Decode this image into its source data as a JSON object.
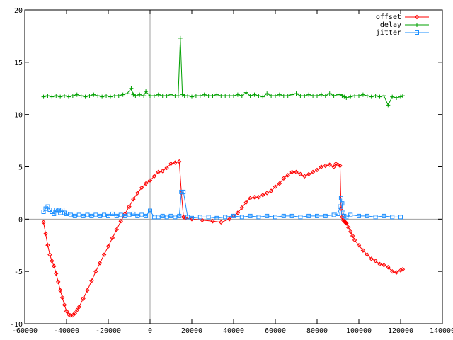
{
  "chart_data": {
    "type": "line",
    "title": "",
    "xlabel": "",
    "ylabel": "",
    "xlim": [
      -60000,
      140000
    ],
    "ylim": [
      -10,
      20
    ],
    "grid": false,
    "legend_position": "top-right",
    "x_ticks": [
      -60000,
      -40000,
      -20000,
      0,
      20000,
      40000,
      60000,
      80000,
      100000,
      120000,
      140000
    ],
    "x_tick_labels": [
      "-60000",
      "-40000",
      "-20000",
      "0",
      "20000",
      "40000",
      "60000",
      "80000",
      "100000",
      "120000",
      "140000"
    ],
    "y_ticks": [
      -10,
      -5,
      0,
      5,
      10,
      15,
      20
    ],
    "y_tick_labels": [
      "-10",
      "-5",
      "0",
      "5",
      "10",
      "15",
      "20"
    ],
    "zero_axes": true,
    "series": [
      {
        "name": "offset",
        "color": "#ff0000",
        "marker": "diamond",
        "x": [
          -51000,
          -50000,
          -49000,
          -48000,
          -47000,
          -46000,
          -45000,
          -44000,
          -43000,
          -42000,
          -41000,
          -40000,
          -39000,
          -38000,
          -37000,
          -36000,
          -35000,
          -34000,
          -32000,
          -30000,
          -28000,
          -26000,
          -24000,
          -22000,
          -20000,
          -18000,
          -16000,
          -14000,
          -12000,
          -10000,
          -8000,
          -6000,
          -4000,
          -2000,
          0,
          2000,
          4000,
          6000,
          8000,
          10000,
          12000,
          14000,
          15000,
          16000,
          17000,
          20000,
          25000,
          30000,
          34000,
          38000,
          40000,
          42000,
          44000,
          46000,
          48000,
          50000,
          52000,
          54000,
          56000,
          58000,
          60000,
          62000,
          64000,
          66000,
          68000,
          70000,
          72000,
          74000,
          76000,
          78000,
          80000,
          82000,
          84000,
          86000,
          88000,
          89000,
          90000,
          91000,
          91500,
          92000,
          92500,
          93000,
          93500,
          94000,
          95000,
          96000,
          97000,
          98000,
          100000,
          102000,
          104000,
          106000,
          108000,
          110000,
          112000,
          114000,
          116000,
          118000,
          120000,
          121000
        ],
        "y": [
          -0.3,
          -1.4,
          -2.5,
          -3.4,
          -4.0,
          -4.5,
          -5.2,
          -6.0,
          -6.8,
          -7.5,
          -8.2,
          -8.8,
          -9.1,
          -9.2,
          -9.2,
          -9.0,
          -8.7,
          -8.4,
          -7.6,
          -6.8,
          -5.9,
          -5.0,
          -4.2,
          -3.4,
          -2.6,
          -1.8,
          -1.0,
          -0.2,
          0.5,
          1.2,
          1.9,
          2.5,
          3.0,
          3.4,
          3.7,
          4.1,
          4.5,
          4.6,
          4.9,
          5.3,
          5.4,
          5.5,
          2.5,
          0.2,
          0.1,
          0.0,
          -0.1,
          -0.2,
          -0.3,
          0.0,
          0.3,
          0.6,
          1.1,
          1.6,
          2.0,
          2.1,
          2.1,
          2.3,
          2.5,
          2.7,
          3.1,
          3.4,
          3.9,
          4.2,
          4.5,
          4.5,
          4.3,
          4.1,
          4.3,
          4.5,
          4.7,
          5.0,
          5.1,
          5.2,
          5.0,
          5.3,
          5.2,
          5.1,
          1.0,
          0.2,
          -0.1,
          -0.2,
          -0.3,
          -0.4,
          -0.8,
          -1.2,
          -1.6,
          -2.0,
          -2.5,
          -3.0,
          -3.4,
          -3.8,
          -4.0,
          -4.3,
          -4.4,
          -4.6,
          -5.0,
          -5.1,
          -4.9,
          -4.8
        ],
        "x_dense": [
          93000,
          94000
        ],
        "x_dense_note": ""
      },
      {
        "name": "delay",
        "color": "#00a000",
        "marker": "plus",
        "x": [
          -51000,
          -49000,
          -47000,
          -45000,
          -43000,
          -41000,
          -39000,
          -37000,
          -35000,
          -33000,
          -31000,
          -29000,
          -27000,
          -25000,
          -23000,
          -21000,
          -19000,
          -17000,
          -15000,
          -13000,
          -11000,
          -9000,
          -8000,
          -7000,
          -5000,
          -3000,
          -2000,
          0,
          2000,
          4000,
          6000,
          8000,
          10000,
          12000,
          13500,
          14500,
          15500,
          16500,
          18000,
          20000,
          22000,
          24000,
          26000,
          28000,
          30000,
          32000,
          34000,
          36000,
          38000,
          40000,
          42000,
          44000,
          46000,
          48000,
          50000,
          52000,
          54000,
          56000,
          58000,
          60000,
          62000,
          64000,
          66000,
          68000,
          70000,
          72000,
          74000,
          76000,
          78000,
          80000,
          82000,
          84000,
          86000,
          88000,
          90000,
          91000,
          92000,
          93000,
          94000,
          96000,
          98000,
          100000,
          102000,
          104000,
          106000,
          108000,
          110000,
          112000,
          114000,
          116000,
          118000,
          120000,
          121000
        ],
        "y": [
          11.7,
          11.8,
          11.7,
          11.8,
          11.7,
          11.8,
          11.7,
          11.8,
          11.9,
          11.8,
          11.7,
          11.8,
          11.9,
          11.8,
          11.7,
          11.8,
          11.7,
          11.8,
          11.8,
          11.9,
          12.0,
          12.5,
          11.9,
          11.8,
          11.9,
          11.8,
          12.2,
          11.8,
          11.8,
          11.9,
          11.8,
          11.8,
          11.9,
          11.8,
          11.8,
          17.3,
          11.9,
          11.8,
          11.8,
          11.7,
          11.8,
          11.8,
          11.9,
          11.8,
          11.8,
          11.9,
          11.8,
          11.8,
          11.8,
          11.8,
          11.9,
          11.8,
          12.1,
          11.8,
          11.9,
          11.8,
          11.7,
          12.0,
          11.8,
          11.8,
          11.9,
          11.8,
          11.8,
          11.9,
          12.0,
          11.8,
          11.8,
          11.9,
          11.8,
          11.8,
          11.9,
          11.8,
          12.0,
          11.8,
          11.9,
          11.9,
          11.8,
          11.7,
          11.6,
          11.7,
          11.8,
          11.8,
          11.9,
          11.8,
          11.7,
          11.8,
          11.7,
          11.8,
          10.9,
          11.7,
          11.6,
          11.7,
          11.8
        ],
        "x_dense": [],
        "x_dense_note": ""
      },
      {
        "name": "jitter",
        "color": "#1e90ff",
        "marker": "square",
        "x": [
          -51000,
          -50000,
          -49000,
          -48000,
          -47000,
          -46000,
          -45000,
          -44000,
          -43000,
          -42000,
          -41000,
          -40000,
          -38000,
          -36000,
          -34000,
          -32000,
          -30000,
          -28000,
          -26000,
          -24000,
          -22000,
          -20000,
          -18000,
          -16000,
          -14000,
          -12000,
          -10000,
          -8000,
          -6000,
          -4000,
          -2000,
          0,
          2000,
          4000,
          6000,
          8000,
          10000,
          12000,
          14000,
          15000,
          16000,
          18000,
          20000,
          24000,
          28000,
          32000,
          36000,
          40000,
          44000,
          48000,
          52000,
          56000,
          60000,
          64000,
          68000,
          72000,
          76000,
          80000,
          84000,
          88000,
          90000,
          91000,
          91500,
          92000,
          92500,
          93000,
          94000,
          96000,
          100000,
          104000,
          108000,
          112000,
          116000,
          120000
        ],
        "y": [
          0.7,
          1.0,
          1.2,
          0.9,
          0.7,
          0.5,
          0.9,
          0.8,
          0.6,
          0.9,
          0.6,
          0.5,
          0.4,
          0.3,
          0.4,
          0.3,
          0.4,
          0.3,
          0.4,
          0.3,
          0.4,
          0.3,
          0.5,
          0.3,
          0.4,
          0.3,
          0.4,
          0.5,
          0.3,
          0.4,
          0.3,
          0.8,
          0.2,
          0.2,
          0.3,
          0.2,
          0.3,
          0.2,
          0.3,
          2.6,
          2.6,
          0.2,
          0.1,
          0.2,
          0.2,
          0.1,
          0.2,
          0.3,
          0.2,
          0.3,
          0.2,
          0.3,
          0.2,
          0.3,
          0.3,
          0.2,
          0.3,
          0.3,
          0.3,
          0.4,
          0.5,
          1.2,
          2.0,
          1.5,
          0.6,
          0.3,
          0.2,
          0.4,
          0.3,
          0.3,
          0.2,
          0.3,
          0.2,
          0.2
        ]
      }
    ]
  }
}
